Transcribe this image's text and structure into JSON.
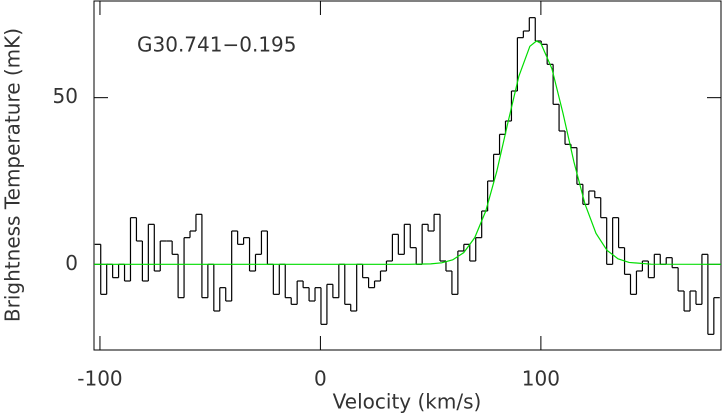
{
  "chart_data": {
    "type": "line",
    "annotation": "G30.741−0.195",
    "xlabel": "Velocity (km/s)",
    "ylabel": "Brightness Temperature (mK)",
    "xlim": [
      -102.7,
      181.7
    ],
    "ylim": [
      -25.7,
      79
    ],
    "xticks": [
      -100,
      0,
      100
    ],
    "yticks": [
      0,
      50
    ],
    "grid": false,
    "series": [
      {
        "name": "spectrum",
        "color": "#000000",
        "step": true,
        "x": [
          -101,
          -98.3,
          -95.6,
          -92.9,
          -90.2,
          -87.5,
          -84.8,
          -82.1,
          -79.4,
          -76.7,
          -74,
          -71.3,
          -68.6,
          -65.9,
          -63.2,
          -60.5,
          -57.8,
          -55.1,
          -52.4,
          -49.7,
          -47,
          -44.3,
          -41.6,
          -38.9,
          -36.2,
          -33.5,
          -30.8,
          -28.1,
          -25.4,
          -22.7,
          -20,
          -17.3,
          -14.6,
          -11.9,
          -9.2,
          -6.5,
          -3.8,
          -1.1,
          1.6,
          4.3,
          7,
          9.7,
          12.4,
          15.1,
          17.8,
          20.5,
          23.2,
          25.9,
          28.6,
          31.3,
          34,
          36.7,
          39.4,
          42.1,
          44.8,
          47.5,
          50.2,
          52.9,
          55.6,
          58.3,
          61,
          63.7,
          66.4,
          69.1,
          71.8,
          74.5,
          77.2,
          79.9,
          82.6,
          85.3,
          88,
          90.7,
          93.4,
          96.1,
          98.8,
          101.5,
          104.2,
          106.9,
          109.6,
          112.3,
          115,
          117.7,
          120.4,
          123.1,
          125.8,
          128.5,
          131.2,
          133.9,
          136.6,
          139.3,
          142,
          144.7,
          147.4,
          150.1,
          152.8,
          155.5,
          158.2,
          160.9,
          163.6,
          166.3,
          169,
          171.7,
          174.4,
          177.1,
          179.8
        ],
        "values": [
          6,
          -9,
          0,
          -4,
          0,
          -5,
          14,
          7,
          -5,
          12,
          -2,
          7,
          7,
          3,
          -10,
          8,
          10,
          15,
          -10,
          0,
          -14,
          -7,
          -11,
          10,
          6,
          8,
          -2,
          3,
          10,
          0,
          -9,
          0,
          -10,
          -12,
          -5,
          -7,
          -11,
          -7,
          -18,
          -6,
          -10,
          0,
          -12,
          -14,
          0,
          -4,
          -7,
          -5,
          -2,
          1,
          9,
          3,
          12,
          5,
          0,
          12,
          10,
          15,
          1,
          -2,
          -9,
          4,
          6,
          1,
          8,
          16,
          25,
          33,
          39,
          43,
          52,
          68,
          70,
          74,
          67,
          66,
          60,
          48,
          40,
          36,
          35,
          24,
          18,
          22,
          20,
          14,
          0,
          14,
          5,
          -3,
          -9,
          -2,
          1,
          -4,
          3,
          0,
          2,
          -1,
          -8,
          -14,
          -8,
          -12,
          3,
          -21,
          -10
        ]
      },
      {
        "name": "fit",
        "color": "#00dd00",
        "step": false,
        "x": [
          -102.7,
          40,
          50,
          55,
          60,
          65,
          70,
          75,
          80,
          85,
          90,
          95,
          98,
          100,
          105,
          110,
          115,
          120,
          125,
          130,
          135,
          140,
          150,
          181.7
        ],
        "values": [
          0,
          0,
          0.13,
          0.45,
          1.35,
          3.5,
          8.0,
          16.0,
          27.9,
          42.4,
          56.4,
          65.4,
          67,
          66.3,
          58.7,
          45.4,
          30.7,
          18.1,
          9.3,
          4.2,
          1.65,
          0.57,
          0.04,
          0
        ]
      }
    ]
  }
}
